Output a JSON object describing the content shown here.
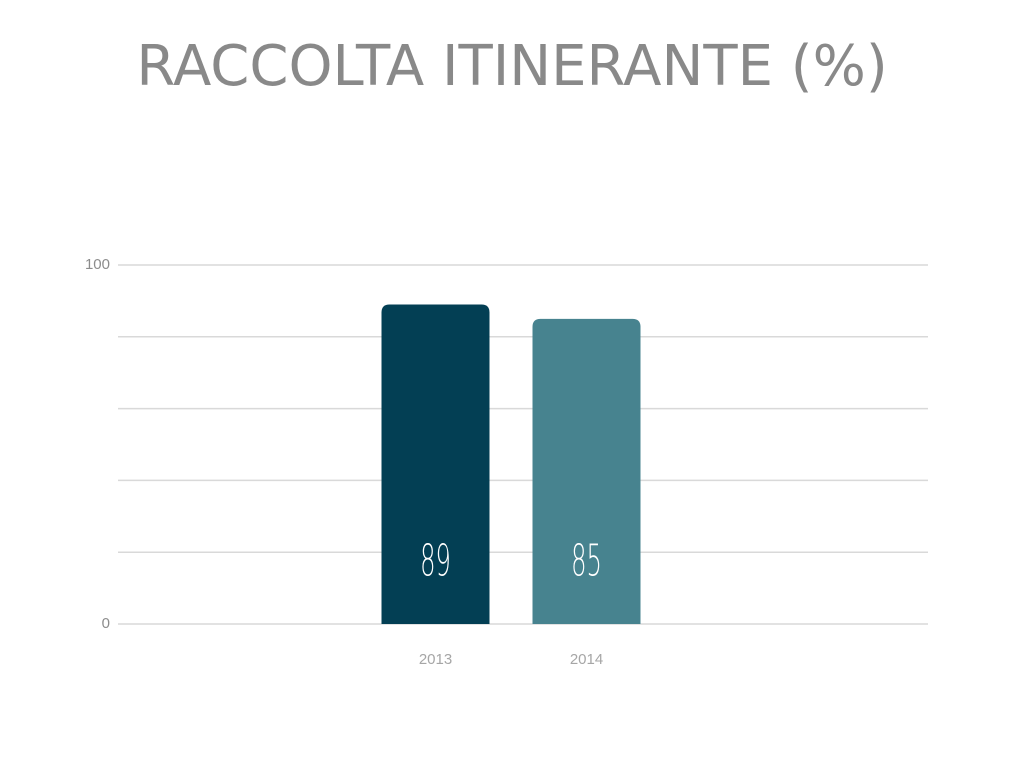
{
  "chart_data": {
    "type": "bar",
    "title": "RACCOLTA ITINERANTE (%)",
    "categories": [
      "2013",
      "2014"
    ],
    "values": [
      89,
      85
    ],
    "colors": [
      "#033f54",
      "#47838f"
    ],
    "ylim": [
      0,
      100
    ],
    "yticks": [
      0,
      100
    ],
    "minor_gridlines": [
      20,
      40,
      60,
      80
    ],
    "grid": true
  }
}
